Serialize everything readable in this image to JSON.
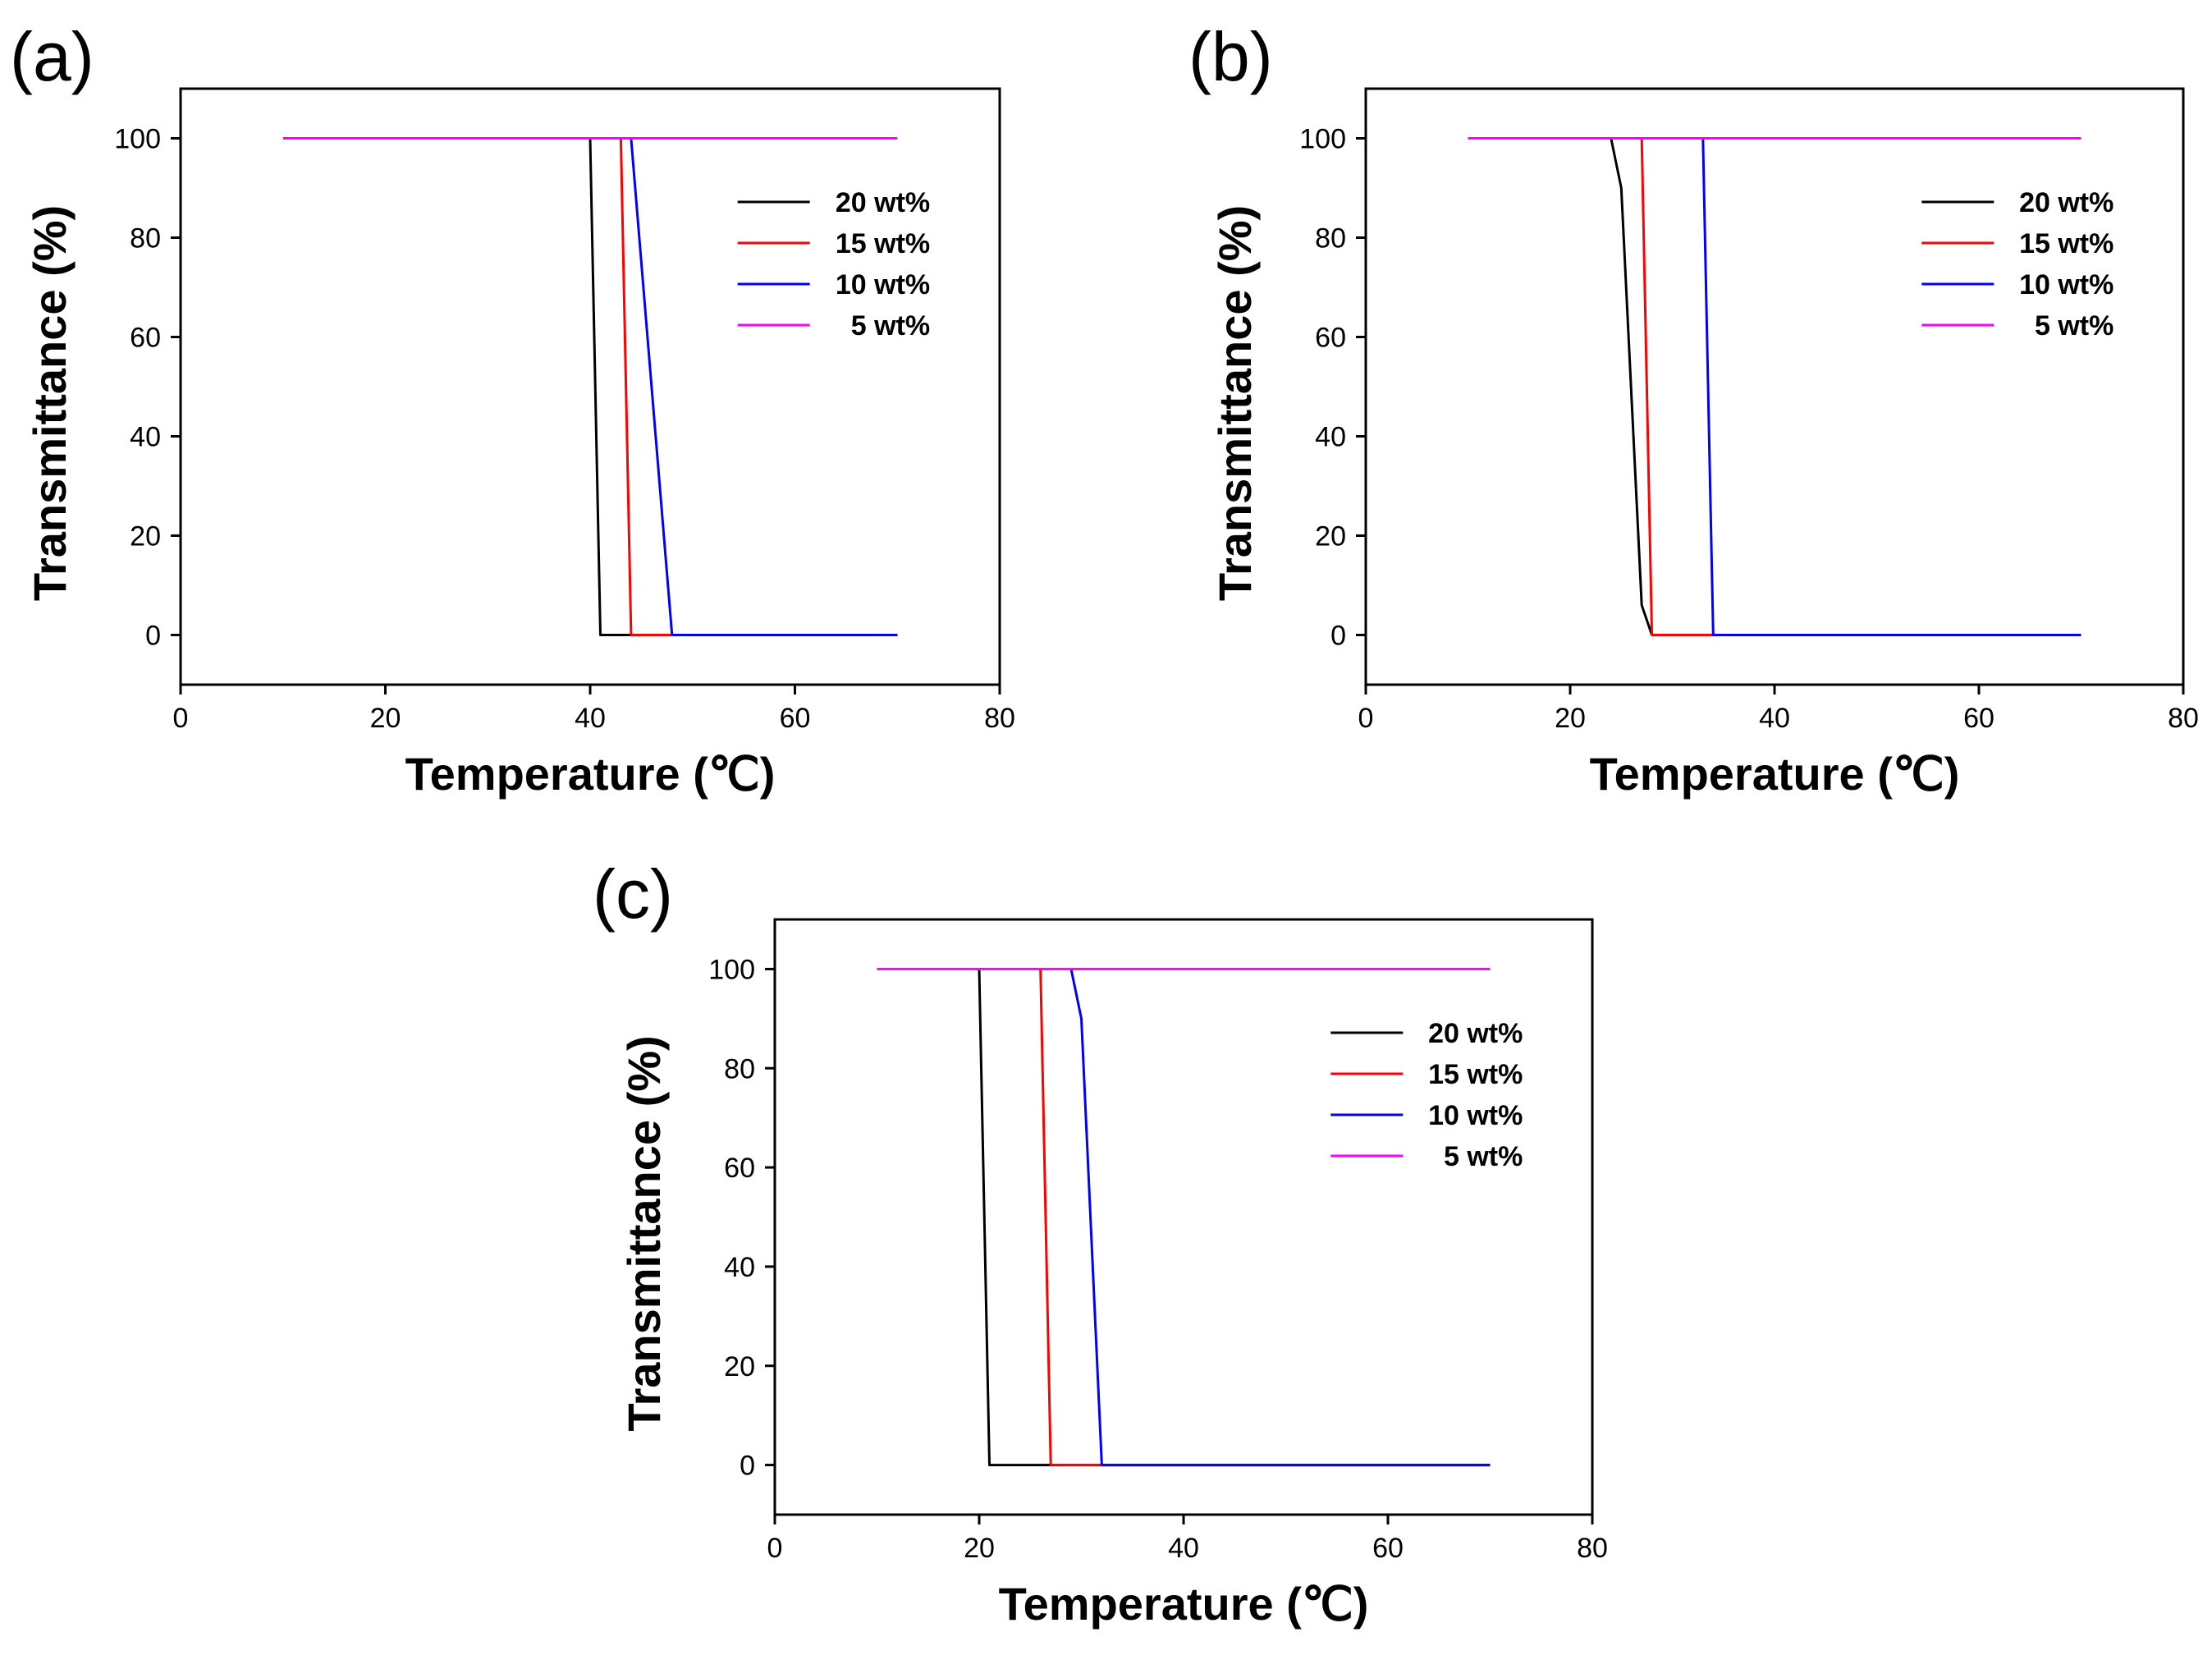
{
  "chart_data": [
    {
      "type": "line",
      "panel_label": "(a)",
      "xlabel": "Temperature (℃)",
      "ylabel": "Transmittance (%)",
      "xlim": [
        0,
        80
      ],
      "ylim": [
        -10,
        110
      ],
      "xticks": [
        0,
        20,
        40,
        60,
        80
      ],
      "yticks": [
        0,
        20,
        40,
        60,
        80,
        100
      ],
      "xtick_labels": [
        "0",
        "20",
        "40",
        "60",
        "80"
      ],
      "ytick_labels": [
        "0",
        "20",
        "40",
        "60",
        "80",
        "100"
      ],
      "grid": false,
      "legend_position": "top-right",
      "series": [
        {
          "name": "20 wt%",
          "color": "#000000",
          "points": [
            [
              40,
              100
            ],
            [
              41,
              0
            ],
            [
              70,
              0
            ]
          ]
        },
        {
          "name": "15 wt%",
          "color": "#ff0000",
          "points": [
            [
              43,
              100
            ],
            [
              44,
              0
            ],
            [
              70,
              0
            ]
          ]
        },
        {
          "name": "10 wt%",
          "color": "#0000ff",
          "points": [
            [
              44,
              100
            ],
            [
              48,
              0
            ],
            [
              70,
              0
            ]
          ]
        },
        {
          "name": "5 wt%",
          "color": "#ff00ff",
          "points": [
            [
              10,
              100
            ],
            [
              70,
              100
            ]
          ]
        }
      ]
    },
    {
      "type": "line",
      "panel_label": "(b)",
      "xlabel": "Temperature (℃)",
      "ylabel": "Transmittance (%)",
      "xlim": [
        0,
        80
      ],
      "ylim": [
        -10,
        110
      ],
      "xticks": [
        0,
        20,
        40,
        60,
        80
      ],
      "yticks": [
        0,
        20,
        40,
        60,
        80,
        100
      ],
      "xtick_labels": [
        "0",
        "20",
        "40",
        "60",
        "80"
      ],
      "ytick_labels": [
        "0",
        "20",
        "40",
        "60",
        "80",
        "100"
      ],
      "grid": false,
      "legend_position": "top-right",
      "series": [
        {
          "name": "20 wt%",
          "color": "#000000",
          "points": [
            [
              24,
              100
            ],
            [
              25,
              90
            ],
            [
              27,
              6
            ],
            [
              28,
              0
            ],
            [
              70,
              0
            ]
          ]
        },
        {
          "name": "15 wt%",
          "color": "#ff0000",
          "points": [
            [
              27,
              100
            ],
            [
              28,
              0
            ],
            [
              70,
              0
            ]
          ]
        },
        {
          "name": "10 wt%",
          "color": "#0000ff",
          "points": [
            [
              33,
              100
            ],
            [
              34,
              0
            ],
            [
              70,
              0
            ]
          ]
        },
        {
          "name": "5 wt%",
          "color": "#ff00ff",
          "points": [
            [
              10,
              100
            ],
            [
              70,
              100
            ]
          ]
        }
      ]
    },
    {
      "type": "line",
      "panel_label": "(c)",
      "xlabel": "Temperature (℃)",
      "ylabel": "Transmittance (%)",
      "xlim": [
        0,
        80
      ],
      "ylim": [
        -10,
        110
      ],
      "xticks": [
        0,
        20,
        40,
        60,
        80
      ],
      "yticks": [
        0,
        20,
        40,
        60,
        80,
        100
      ],
      "xtick_labels": [
        "0",
        "20",
        "40",
        "60",
        "80"
      ],
      "ytick_labels": [
        "0",
        "20",
        "40",
        "60",
        "80",
        "100"
      ],
      "grid": false,
      "legend_position": "top-right",
      "series": [
        {
          "name": "20 wt%",
          "color": "#000000",
          "points": [
            [
              20,
              100
            ],
            [
              21,
              0
            ],
            [
              70,
              0
            ]
          ]
        },
        {
          "name": "15 wt%",
          "color": "#ff0000",
          "points": [
            [
              26,
              100
            ],
            [
              27,
              0
            ],
            [
              70,
              0
            ]
          ]
        },
        {
          "name": "10 wt%",
          "color": "#0000ff",
          "points": [
            [
              29,
              100
            ],
            [
              30,
              90
            ],
            [
              32,
              0
            ],
            [
              70,
              0
            ]
          ]
        },
        {
          "name": "5 wt%",
          "color": "#ff00ff",
          "points": [
            [
              10,
              100
            ],
            [
              70,
              100
            ]
          ]
        }
      ]
    }
  ]
}
